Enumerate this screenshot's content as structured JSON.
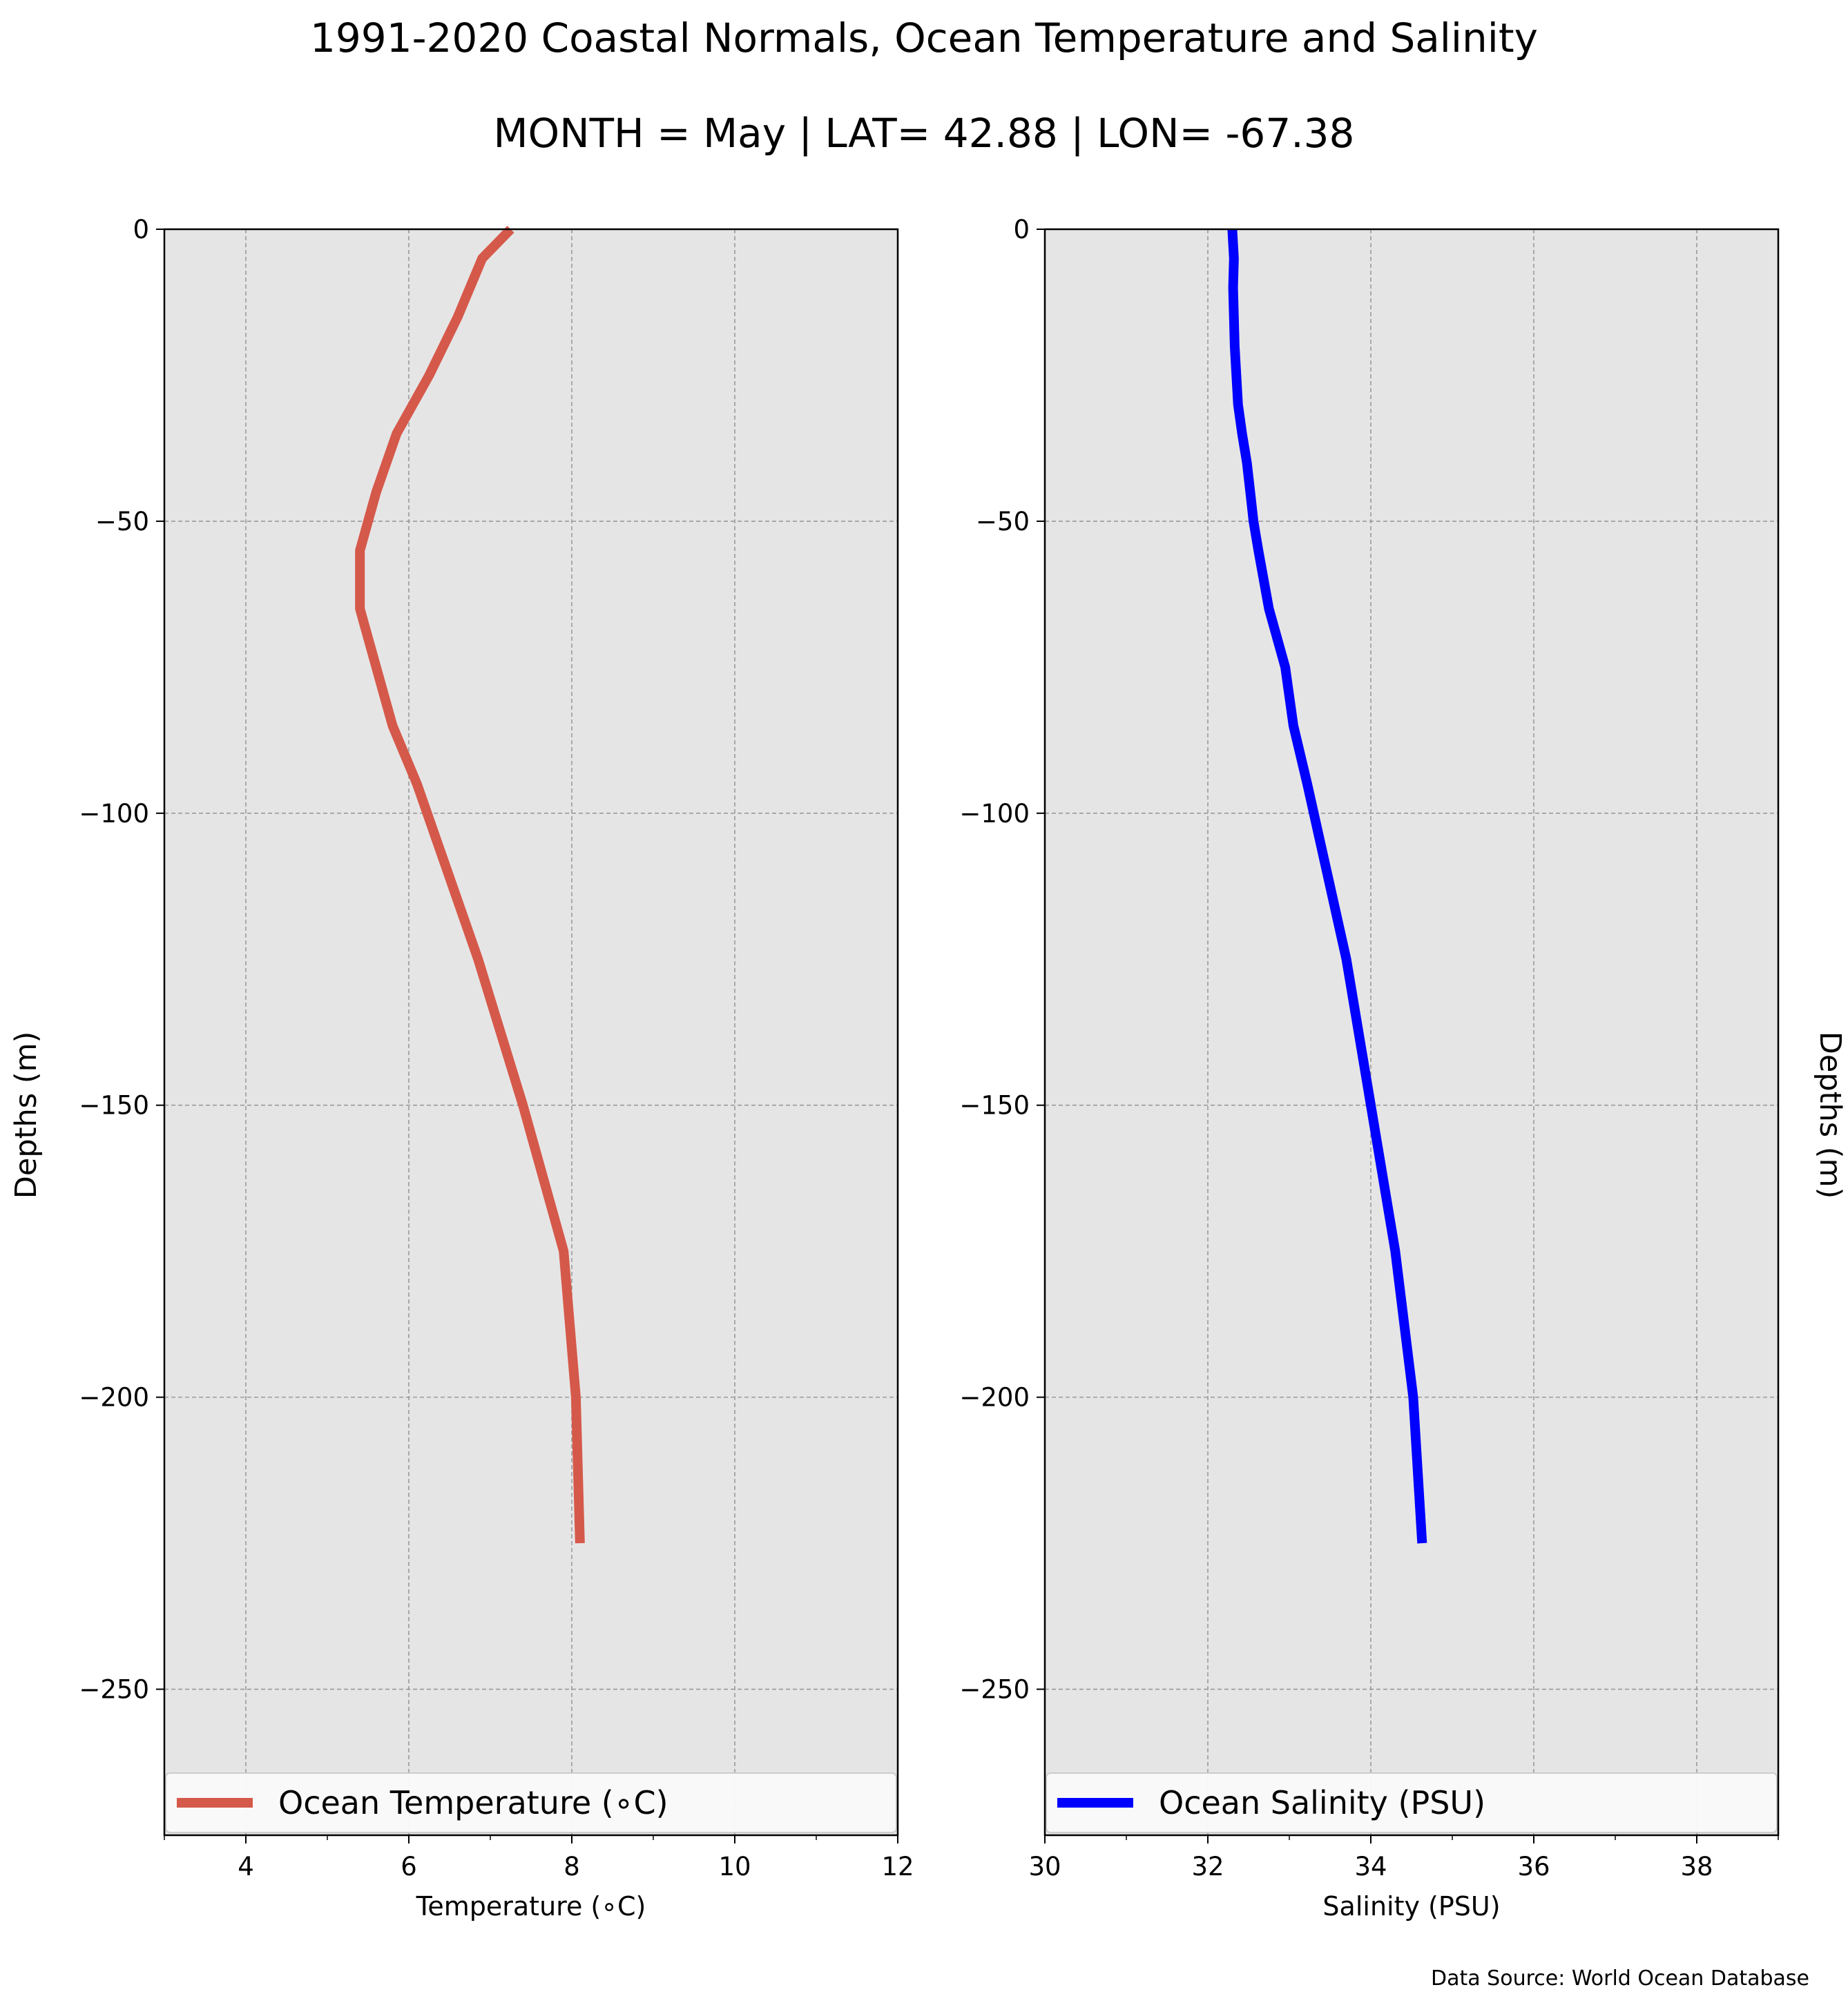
{
  "title": "1991-2020 Coastal Normals, Ocean Temperature and Salinity",
  "subtitle": "MONTH = May | LAT= 42.88 | LON= -67.38",
  "source": "Data Source: World Ocean Database",
  "colors": {
    "background": "#ffffff",
    "plot_bg": "#e6e5e6",
    "grid": "#9a9a9a",
    "temperature": "#d5594a",
    "salinity": "#0000ff"
  },
  "chart_data": [
    {
      "type": "line",
      "name": "temperature",
      "xlabel": "Temperature ($^\\circ$C)",
      "xlabel_display": "Temperature (∘C)",
      "ylabel": "Depths (m)",
      "xlim": [
        3,
        12
      ],
      "ylim": [
        -275,
        0
      ],
      "xticks": [
        4,
        6,
        8,
        10,
        12
      ],
      "xtick_labels": [
        "4",
        "6",
        "8",
        "10",
        "12"
      ],
      "yticks": [
        0,
        -50,
        -100,
        -150,
        -200,
        -250
      ],
      "ytick_labels": [
        "0",
        "−50",
        "−100",
        "−150",
        "−200",
        "−250"
      ],
      "grid": true,
      "legend": {
        "label": "Ocean Temperature (∘C)",
        "placement": "lower center"
      },
      "series": [
        {
          "name": "Ocean Temperature (∘C)",
          "x": [
            7.25,
            6.9,
            6.6,
            6.25,
            5.85,
            5.6,
            5.5,
            5.4,
            5.4,
            5.6,
            5.8,
            6.1,
            6.85,
            7.4,
            7.9,
            8.05,
            8.1
          ],
          "y": [
            0,
            -5,
            -15,
            -25,
            -35,
            -45,
            -50,
            -55,
            -65,
            -75,
            -85,
            -95,
            -125,
            -150,
            -175,
            -200,
            -225
          ]
        }
      ]
    },
    {
      "type": "line",
      "name": "salinity",
      "xlabel": "Salinity (PSU)",
      "ylabel": "Depths (m)",
      "xlim": [
        30,
        39
      ],
      "ylim": [
        -275,
        0
      ],
      "xticks": [
        30,
        32,
        34,
        36,
        38
      ],
      "xtick_labels": [
        "30",
        "32",
        "34",
        "36",
        "38"
      ],
      "yticks": [
        0,
        -50,
        -100,
        -150,
        -200,
        -250
      ],
      "ytick_labels": [
        "0",
        "−50",
        "−100",
        "−150",
        "−200",
        "−250"
      ],
      "grid": true,
      "legend": {
        "label": "Ocean Salinity (PSU)",
        "placement": "lower center"
      },
      "series": [
        {
          "name": "Ocean Salinity (PSU)",
          "x": [
            32.3,
            32.32,
            32.31,
            32.33,
            32.37,
            32.42,
            32.48,
            32.52,
            32.56,
            32.62,
            32.75,
            32.95,
            33.05,
            33.22,
            33.7,
            34.0,
            34.3,
            34.52,
            34.63
          ],
          "y": [
            0,
            -5,
            -10,
            -20,
            -30,
            -35,
            -40,
            -45,
            -50,
            -55,
            -65,
            -75,
            -85,
            -95,
            -125,
            -150,
            -175,
            -200,
            -225
          ]
        }
      ]
    }
  ]
}
